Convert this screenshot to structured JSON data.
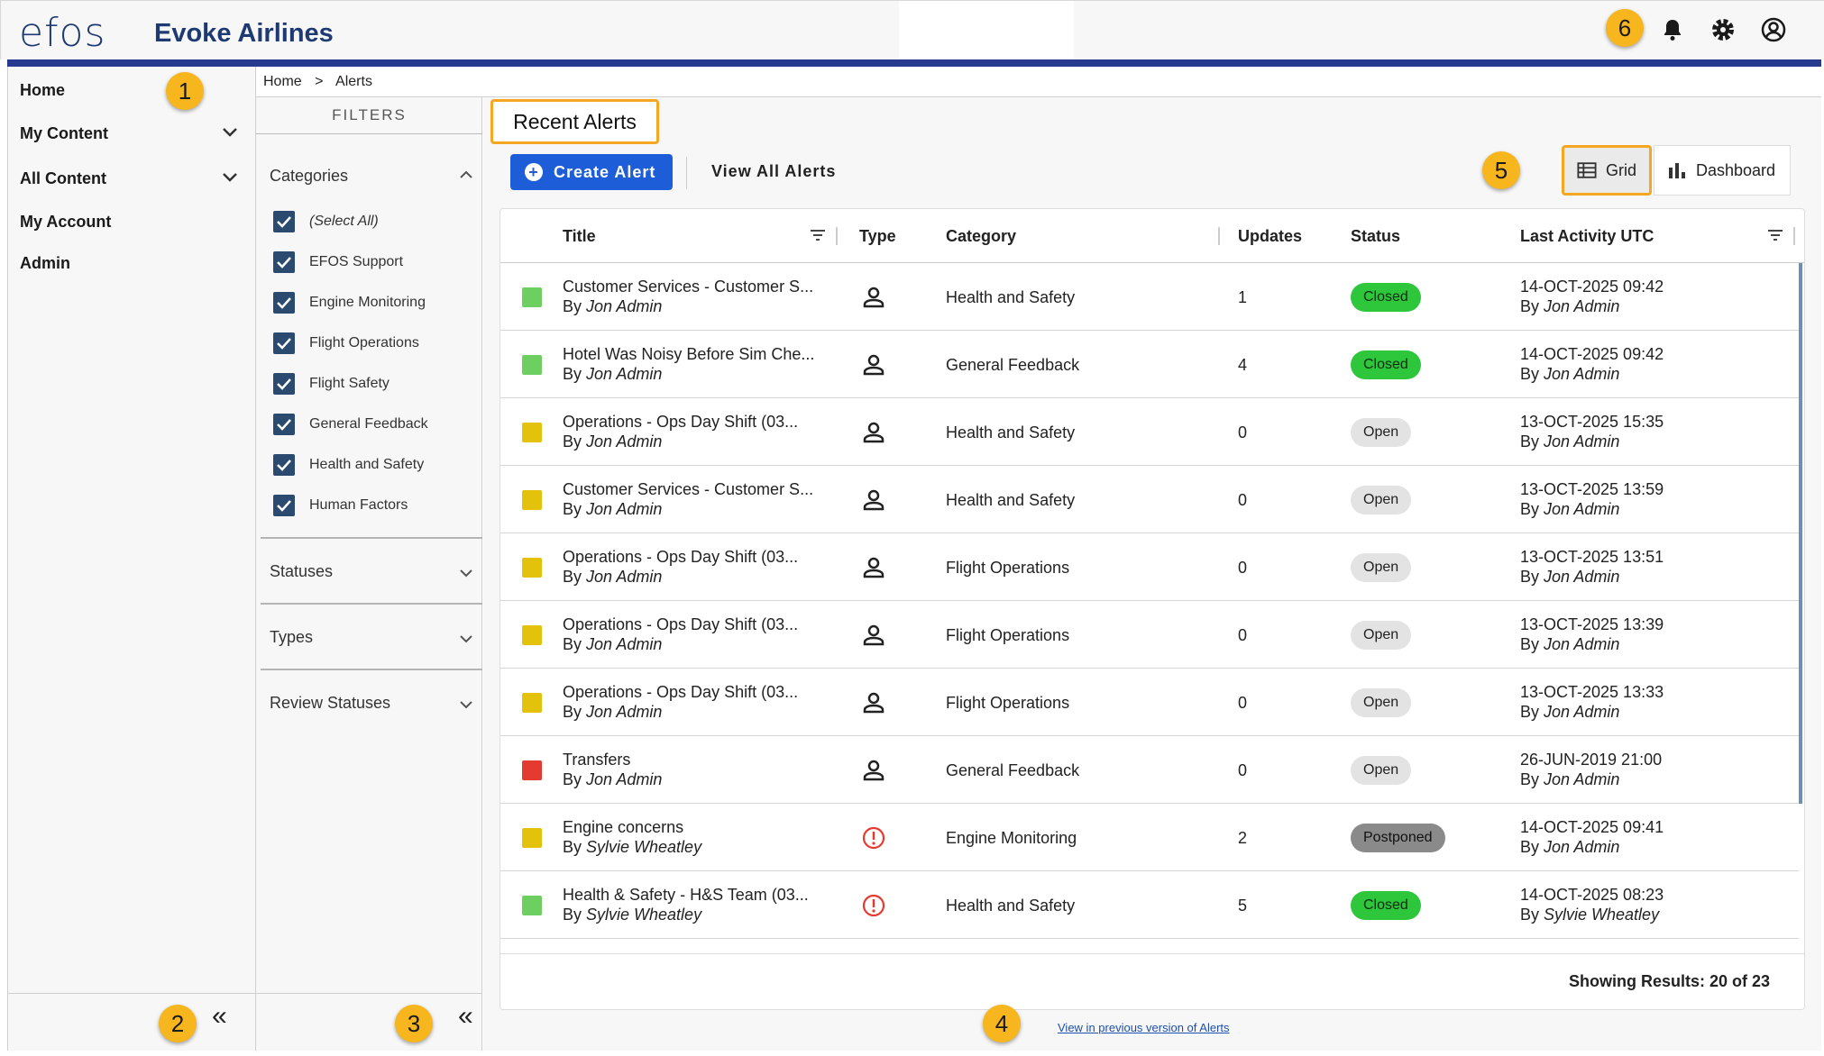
{
  "header": {
    "logo": "efos",
    "airline": "Evoke Airlines",
    "icons": [
      "bell-icon",
      "gear-icon",
      "account-icon"
    ]
  },
  "badges": [
    "1",
    "2",
    "3",
    "4",
    "5",
    "6"
  ],
  "nav": {
    "items": [
      {
        "label": "Home",
        "chevron": false
      },
      {
        "label": "My Content",
        "chevron": true
      },
      {
        "label": "All Content",
        "chevron": true
      },
      {
        "label": "My Account",
        "chevron": false
      },
      {
        "label": "Admin",
        "chevron": false
      }
    ],
    "collapse": "«"
  },
  "breadcrumb": {
    "home": "Home",
    "sep": ">",
    "current": "Alerts"
  },
  "filters": {
    "title": "FILTERS",
    "categories_label": "Categories",
    "categories": [
      "(Select All)",
      "EFOS Support",
      "Engine Monitoring",
      "Flight Operations",
      "Flight Safety",
      "General Feedback",
      "Health and Safety",
      "Human Factors"
    ],
    "statuses_label": "Statuses",
    "types_label": "Types",
    "review_label": "Review Statuses",
    "collapse": "«"
  },
  "main": {
    "title": "Recent Alerts",
    "create_label": "Create Alert",
    "view_all_label": "View All Alerts",
    "grid_label": "Grid",
    "dashboard_label": "Dashboard"
  },
  "table": {
    "columns": {
      "title": "Title",
      "type": "Type",
      "category": "Category",
      "updates": "Updates",
      "status": "Status",
      "activity": "Last Activity UTC"
    },
    "rows": [
      {
        "color": "#6ccf5f",
        "title": "Customer Services - Customer S...",
        "by": "By ",
        "author": "Jon Admin",
        "type": "person",
        "category": "Health and Safety",
        "updates": "1",
        "status": "Closed",
        "date": "14-OCT-2025 09:42",
        "act_by": "Jon Admin"
      },
      {
        "color": "#6ccf5f",
        "title": "Hotel Was Noisy Before Sim Che...",
        "by": "By ",
        "author": "Jon Admin",
        "type": "person",
        "category": "General Feedback",
        "updates": "4",
        "status": "Closed",
        "date": "14-OCT-2025 09:42",
        "act_by": "Jon Admin"
      },
      {
        "color": "#e4c20c",
        "title": "Operations - Ops Day Shift (03...",
        "by": "By ",
        "author": "Jon Admin",
        "type": "person",
        "category": "Health and Safety",
        "updates": "0",
        "status": "Open",
        "date": "13-OCT-2025 15:35",
        "act_by": "Jon Admin"
      },
      {
        "color": "#e4c20c",
        "title": "Customer Services - Customer S...",
        "by": "By ",
        "author": "Jon Admin",
        "type": "person",
        "category": "Health and Safety",
        "updates": "0",
        "status": "Open",
        "date": "13-OCT-2025 13:59",
        "act_by": "Jon Admin"
      },
      {
        "color": "#e4c20c",
        "title": "Operations - Ops Day Shift (03...",
        "by": "By ",
        "author": "Jon Admin",
        "type": "person",
        "category": "Flight Operations",
        "updates": "0",
        "status": "Open",
        "date": "13-OCT-2025 13:51",
        "act_by": "Jon Admin"
      },
      {
        "color": "#e4c20c",
        "title": "Operations - Ops Day Shift (03...",
        "by": "By ",
        "author": "Jon Admin",
        "type": "person",
        "category": "Flight Operations",
        "updates": "0",
        "status": "Open",
        "date": "13-OCT-2025 13:39",
        "act_by": "Jon Admin"
      },
      {
        "color": "#e4c20c",
        "title": "Operations - Ops Day Shift (03...",
        "by": "By ",
        "author": "Jon Admin",
        "type": "person",
        "category": "Flight Operations",
        "updates": "0",
        "status": "Open",
        "date": "13-OCT-2025 13:33",
        "act_by": "Jon Admin"
      },
      {
        "color": "#e53a2f",
        "title": "Transfers",
        "by": "By ",
        "author": "Jon Admin",
        "type": "person",
        "category": "General Feedback",
        "updates": "0",
        "status": "Open",
        "date": "26-JUN-2019 21:00",
        "act_by": "Jon Admin"
      },
      {
        "color": "#e4c20c",
        "title": "Engine concerns",
        "by": "By ",
        "author": "Sylvie Wheatley",
        "type": "alert",
        "category": "Engine Monitoring",
        "updates": "2",
        "status": "Postponed",
        "date": "14-OCT-2025 09:41",
        "act_by": "Jon Admin"
      },
      {
        "color": "#6ccf5f",
        "title": "Health & Safety - H&S Team (03...",
        "by": "By ",
        "author": "Sylvie Wheatley",
        "type": "alert",
        "category": "Health and Safety",
        "updates": "5",
        "status": "Closed",
        "date": "14-OCT-2025 08:23",
        "act_by": "Sylvie Wheatley"
      }
    ],
    "by_prefix": "By ",
    "showing": "Showing Results: 20 of 23"
  },
  "footer": {
    "prev_link": "View in previous version of Alerts"
  },
  "colors": {
    "brand": "#263a8f",
    "accent": "#1d5ed8",
    "badge": "#f7b51e",
    "highlight": "#f5a623"
  }
}
